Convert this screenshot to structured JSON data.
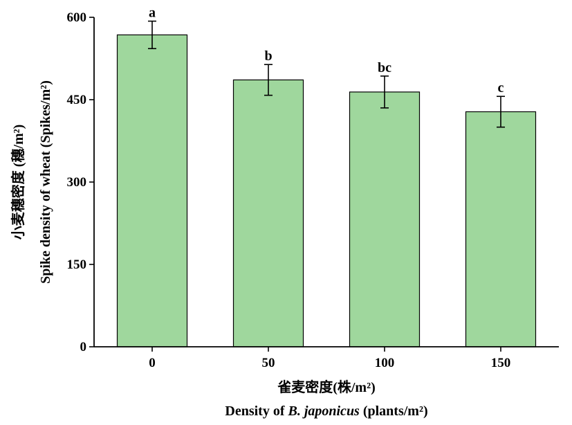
{
  "chart_data": {
    "type": "bar",
    "categories": [
      "0",
      "50",
      "100",
      "150"
    ],
    "values": [
      568,
      486,
      464,
      428
    ],
    "errors": [
      25,
      28,
      29,
      28
    ],
    "significance_letters": [
      "a",
      "b",
      "bc",
      "c"
    ],
    "ylim": [
      0,
      600
    ],
    "yticks": [
      "0",
      "150",
      "300",
      "450",
      "600"
    ],
    "xlabel_cn": "雀麦密度(株/m²)",
    "xlabel_en": {
      "prefix": "Density of ",
      "species": "B. japonicus",
      "suffix": " (plants/m²)"
    },
    "ylabel_cn": "小麦穗密度 (穗/m²)",
    "ylabel_en": "Spike density of wheat (Spikes/m²)",
    "bar_color": "#9fd79d",
    "bar_edge_color": "#000000",
    "grid": false,
    "legend": "none"
  }
}
